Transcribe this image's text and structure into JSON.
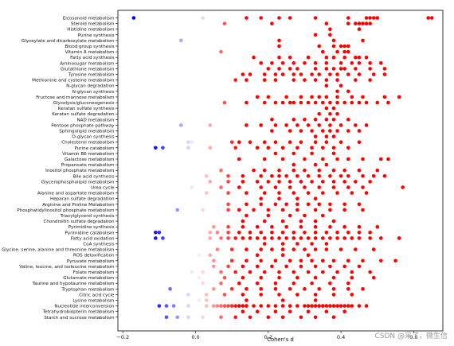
{
  "chart_data": {
    "type": "scatter",
    "title": "",
    "xlabel": "Cohen's d",
    "ylabel": "",
    "xlim": [
      -0.22,
      0.65
    ],
    "xticks": [
      -0.2,
      0.0,
      0.2,
      0.4,
      0.6
    ],
    "xtick_labels": [
      "−0.2",
      "0.0",
      "0.2",
      "0.4",
      "0.6"
    ],
    "grid": false,
    "legend": "none",
    "color_scale": {
      "negative": "#0000ff",
      "neutral": "#ffffff",
      "positive": "#ff0000",
      "saturate_at": 0.12
    },
    "categories": [
      "Eicosanoid metabolism",
      "Steroid metabolism",
      "Histidine metabolism",
      "Purine synthesis",
      "Glyoxylate and dicarboxylate metabolism",
      "Blood group synthesis",
      "Vitamin A metabolism",
      "Fatty acid synthesis",
      "Aminosugar metabolism",
      "Glutathione metabolism",
      "Tyrosine metabolism",
      "Methionine and cysteine metabolism",
      "N-glycan degradation",
      "N-glycan synthesis",
      "Fructose and mannose metabolism",
      "Glycolysis/gluconeogenesis",
      "Keratan sulfate synthesis",
      "Keratan sulfate degradation",
      "NAD metabolism",
      "Pentose phosphate pathway",
      "Sphingolipid metabolism",
      "O-glycan synthesis",
      "Cholesterol metabolism",
      "Purine catabolism",
      "Vitamin B6 metabolism",
      "Galactose metabolism",
      "Propanoate metabolism",
      "Inositol phosphate metabolism",
      "Bile acid synthesis",
      "Glycerophospholipid metabolism",
      "Urea cycle",
      "Alanine and aspartate metabolism",
      "Heparan sulfate degradation",
      "Arginine and Proline Metabolism",
      "Phosphatidylinositol phosphate metabolism",
      "Triacylglycerol synthesis",
      "Chondroitin sulfate degradation",
      "Pyrimidine synthesis",
      "Pyrimidine catabolism",
      "Fatty acid oxidation",
      "CoA synthesis",
      "Glycine, serine, alanine and threonine metabolism",
      "ROS detoxification",
      "Pyruvate metabolism",
      "Valine, leucine, and isoleucine metabolism",
      "Folate metabolism",
      "Glutamate metabolism",
      "Taurine and hypotaurine metabolism",
      "Tryptophan metabolism",
      "Citric acid cycle",
      "Lysine metabolism",
      "Nucleotide interconversion",
      "Tetrahydrobiopterin metabolism",
      "Starch and sucrose metabolism"
    ],
    "series": [
      {
        "values": [
          [
            -0.17,
            0.0,
            0.02,
            0.14,
            0.18,
            0.23,
            0.26,
            0.33,
            0.42,
            0.47,
            0.48,
            0.49,
            0.5,
            0.64,
            0.65
          ],
          [
            0.08,
            0.21,
            0.36,
            0.42,
            0.44,
            0.45,
            0.46,
            0.47,
            0.48
          ],
          [
            0.37,
            0.45
          ],
          [
            0.33,
            0.37
          ],
          [
            -0.04,
            0.23,
            0.38,
            0.46
          ],
          [
            0.23,
            0.34,
            0.38,
            0.4,
            0.41,
            0.42
          ],
          [
            0.07,
            0.35,
            0.39,
            0.41,
            0.42
          ],
          [
            0.16,
            0.23,
            0.26,
            0.31,
            0.36,
            0.38,
            0.41,
            0.44,
            0.45,
            0.47
          ],
          [
            0.18,
            0.21,
            0.24,
            0.27,
            0.3,
            0.33,
            0.36,
            0.4,
            0.43,
            0.45,
            0.48,
            0.51
          ],
          [
            0.2,
            0.23,
            0.26,
            0.28,
            0.33,
            0.36,
            0.38,
            0.4,
            0.41,
            0.44,
            0.48,
            0.52
          ],
          [
            0.13,
            0.15,
            0.19,
            0.22,
            0.24,
            0.27,
            0.29,
            0.32,
            0.34,
            0.37,
            0.39,
            0.42,
            0.45,
            0.49,
            0.52
          ],
          [
            0.11,
            0.14,
            0.19,
            0.22,
            0.27,
            0.3,
            0.33,
            0.36,
            0.39,
            0.44,
            0.48
          ],
          [
            0.36,
            0.4
          ],
          [
            0.39,
            0.42
          ],
          [
            0.17,
            0.2,
            0.25,
            0.29,
            0.32,
            0.34,
            0.36,
            0.39,
            0.43,
            0.46,
            0.52,
            0.56
          ],
          [
            0.08,
            0.14,
            0.19,
            0.22,
            0.24,
            0.26,
            0.27,
            0.29,
            0.31,
            0.33,
            0.35,
            0.37,
            0.39,
            0.41,
            0.43,
            0.45,
            0.47,
            0.5,
            0.53
          ],
          [
            0.36,
            0.38
          ],
          [
            0.34,
            0.37,
            0.39
          ],
          [
            0.21,
            0.27,
            0.3,
            0.33,
            0.36,
            0.38,
            0.42
          ],
          [
            -0.04,
            0.04,
            0.14,
            0.18,
            0.22,
            0.25,
            0.28,
            0.31,
            0.34,
            0.37,
            0.4,
            0.44,
            0.47
          ],
          [
            0.21,
            0.26,
            0.29,
            0.32,
            0.35,
            0.37,
            0.39,
            0.42,
            0.45
          ],
          [
            0.33,
            0.36,
            0.38
          ],
          [
            -0.01,
            -0.02,
            0.1,
            0.12,
            0.15,
            0.19,
            0.22,
            0.26,
            0.29,
            0.33,
            0.36,
            0.4,
            0.45
          ],
          [
            -0.11,
            -0.09,
            -0.02,
            0.04,
            0.11,
            0.17,
            0.2,
            0.24,
            0.28,
            0.32,
            0.35,
            0.38,
            0.42
          ],
          [
            0.22,
            0.27,
            0.32,
            0.38
          ],
          [
            0.0,
            0.12,
            0.19,
            0.24,
            0.3,
            0.35,
            0.39,
            0.42,
            0.46,
            0.51,
            0.53
          ],
          [
            0.27,
            0.33,
            0.36
          ],
          [
            0.07,
            0.16,
            0.19,
            0.23,
            0.27,
            0.3,
            0.34,
            0.38,
            0.41,
            0.45,
            0.5
          ],
          [
            0.03,
            0.09,
            0.13,
            0.18,
            0.21,
            0.23,
            0.25,
            0.28,
            0.31,
            0.34,
            0.37,
            0.4,
            0.42,
            0.46,
            0.49,
            0.52
          ],
          [
            0.04,
            0.09,
            0.13,
            0.17,
            0.2,
            0.23,
            0.26,
            0.29,
            0.32,
            0.35,
            0.38,
            0.41,
            0.44,
            0.48
          ],
          [
            -0.01,
            0.07,
            0.12,
            0.18,
            0.22,
            0.26,
            0.3,
            0.34,
            0.38,
            0.42,
            0.46,
            0.57
          ],
          [
            0.03,
            0.09,
            0.14,
            0.19,
            0.23,
            0.27,
            0.31,
            0.35,
            0.39,
            0.43,
            0.47
          ],
          [
            0.18,
            0.23,
            0.28,
            0.33
          ],
          [
            0.09,
            0.14,
            0.18,
            0.22,
            0.25,
            0.28,
            0.31,
            0.34,
            0.37,
            0.41,
            0.45
          ],
          [
            -0.05,
            0.02,
            0.09,
            0.12,
            0.16,
            0.2,
            0.24,
            0.28,
            0.33,
            0.37,
            0.41,
            0.46
          ],
          [
            0.14,
            0.2,
            0.26,
            0.3,
            0.35
          ],
          [
            0.13,
            0.19,
            0.24,
            0.29,
            0.33,
            0.38
          ],
          [
            0.05,
            0.09,
            0.13,
            0.17,
            0.21,
            0.25,
            0.29,
            0.33,
            0.37,
            0.41,
            0.45,
            0.5
          ],
          [
            -0.11,
            -0.1,
            0.04,
            0.06,
            0.09,
            0.12,
            0.15,
            0.18,
            0.21,
            0.24,
            0.27,
            0.3,
            0.33,
            0.36,
            0.39,
            0.42,
            0.45,
            0.48
          ],
          [
            -0.11,
            -0.09,
            0.0,
            0.04,
            0.07,
            0.09,
            0.11,
            0.13,
            0.15,
            0.17,
            0.19,
            0.21,
            0.23,
            0.25,
            0.27,
            0.29,
            0.31,
            0.33,
            0.35,
            0.37,
            0.39,
            0.41,
            0.43,
            0.45,
            0.48,
            0.51,
            0.56
          ],
          [
            0.19,
            0.24,
            0.28,
            0.32,
            0.36
          ],
          [
            0.06,
            0.1,
            0.14,
            0.18,
            0.21,
            0.24,
            0.27,
            0.3,
            0.33,
            0.36,
            0.4,
            0.44,
            0.49
          ],
          [
            0.01,
            0.04,
            0.17,
            0.24,
            0.31
          ],
          [
            0.05,
            0.1,
            0.14,
            0.18,
            0.22,
            0.26,
            0.29,
            0.32,
            0.35,
            0.38,
            0.42,
            0.46,
            0.51,
            0.55
          ],
          [
            0.0,
            0.05,
            0.09,
            0.13,
            0.17,
            0.21,
            0.25,
            0.29,
            0.33,
            0.37,
            0.41,
            0.45
          ],
          [
            -0.01,
            0.02,
            0.07,
            0.11,
            0.15,
            0.19,
            0.23,
            0.27,
            0.31,
            0.35,
            0.39,
            0.43,
            0.48
          ],
          [
            0.01,
            0.08,
            0.13,
            0.18,
            0.23,
            0.28,
            0.33,
            0.38,
            0.43,
            0.49
          ],
          [
            0.02,
            0.07,
            0.12,
            0.17,
            0.22,
            0.27,
            0.32,
            0.37,
            0.42
          ],
          [
            -0.07,
            0.0,
            0.05,
            0.1,
            0.14,
            0.18,
            0.22,
            0.26,
            0.3,
            0.34,
            0.38,
            0.42,
            0.46
          ],
          [
            -0.02,
            0.03,
            0.08,
            0.13,
            0.18,
            0.23,
            0.28,
            0.33,
            0.38,
            0.43
          ],
          [
            0.01,
            0.03,
            0.14,
            0.24,
            0.33
          ],
          [
            -0.1,
            -0.08,
            -0.06,
            -0.02,
            0.03,
            0.05,
            0.06,
            0.07,
            0.08,
            0.09,
            0.1,
            0.11,
            0.12,
            0.13,
            0.14,
            0.16,
            0.18,
            0.2,
            0.22,
            0.24,
            0.26,
            0.28,
            0.3,
            0.31,
            0.32,
            0.33,
            0.34,
            0.35,
            0.36,
            0.37,
            0.38,
            0.39,
            0.4,
            0.41,
            0.42,
            0.43,
            0.45,
            0.47
          ],
          [
            0.13,
            0.17,
            0.22,
            0.26,
            0.31,
            0.36,
            0.41
          ],
          [
            -0.08,
            -0.05,
            -0.02,
            0.02,
            0.07,
            0.11,
            0.15,
            0.2,
            0.24,
            0.29,
            0.33,
            0.38
          ]
        ]
      }
    ]
  },
  "watermark": "CSDN @采了，微生信"
}
